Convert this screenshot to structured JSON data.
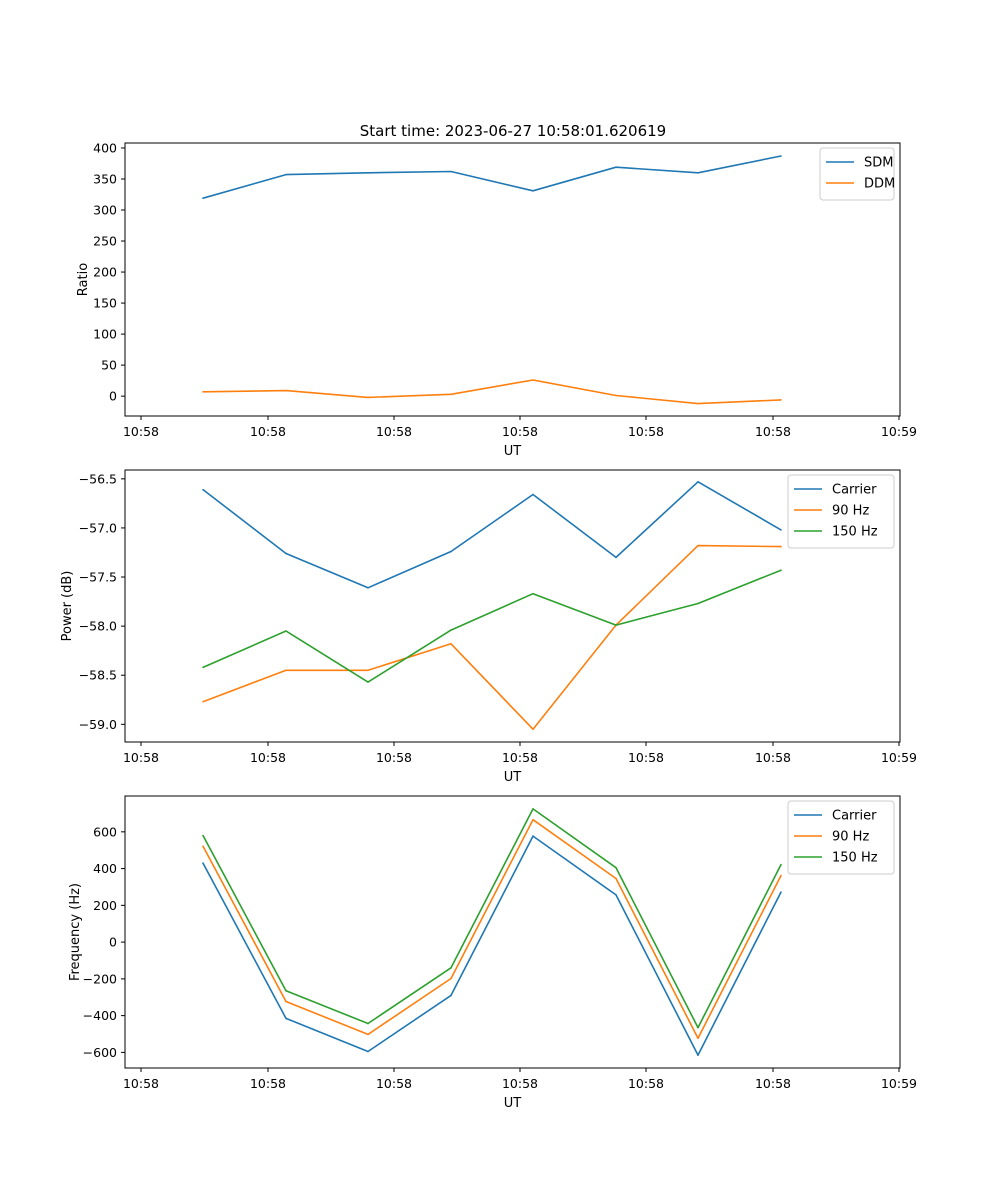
{
  "figure_title": "Start time: 2023-06-27 10:58:01.620619",
  "chart_data": [
    {
      "type": "line",
      "xlabel": "UT",
      "ylabel": "Ratio",
      "x_tick_labels": [
        "10:58",
        "10:58",
        "10:58",
        "10:58",
        "10:58",
        "10:58",
        "10:58"
      ],
      "x_tick_last": "10:59",
      "ylim": [
        -32,
        408
      ],
      "yticks": [
        0,
        50,
        100,
        150,
        200,
        250,
        300,
        350,
        400
      ],
      "ytick_labels": [
        "0",
        "50",
        "100",
        "150",
        "200",
        "250",
        "300",
        "350",
        "400"
      ],
      "legend_position": "top-right",
      "series": [
        {
          "name": "SDM",
          "color": "#1f77b4",
          "values": [
            319,
            357,
            360,
            362,
            331,
            369,
            360,
            387
          ]
        },
        {
          "name": "DDM",
          "color": "#ff7f0e",
          "values": [
            7,
            9,
            -2,
            3,
            26,
            1,
            -12,
            -6
          ]
        }
      ]
    },
    {
      "type": "line",
      "xlabel": "UT",
      "ylabel": "Power (dB)",
      "x_tick_labels": [
        "10:58",
        "10:58",
        "10:58",
        "10:58",
        "10:58",
        "10:58",
        "10:58"
      ],
      "x_tick_last": "10:59",
      "ylim": [
        -59.18,
        -56.41
      ],
      "yticks": [
        -59.0,
        -58.5,
        -58.0,
        -57.5,
        -57.0,
        -56.5
      ],
      "ytick_labels": [
        "−59.0",
        "−58.5",
        "−58.0",
        "−57.5",
        "−57.0",
        "−56.5"
      ],
      "legend_position": "top-right",
      "series": [
        {
          "name": "Carrier",
          "color": "#1f77b4",
          "values": [
            -56.61,
            -57.26,
            -57.61,
            -57.24,
            -56.66,
            -57.3,
            -56.53,
            -57.02
          ]
        },
        {
          "name": "90 Hz",
          "color": "#ff7f0e",
          "values": [
            -58.77,
            -58.45,
            -58.45,
            -58.18,
            -59.05,
            -57.99,
            -57.18,
            -57.19
          ]
        },
        {
          "name": "150 Hz",
          "color": "#2ca02c",
          "values": [
            -58.42,
            -58.05,
            -58.57,
            -58.04,
            -57.67,
            -57.99,
            -57.77,
            -57.43
          ]
        }
      ]
    },
    {
      "type": "line",
      "xlabel": "UT",
      "ylabel": "Frequency (Hz)",
      "x_tick_labels": [
        "10:58",
        "10:58",
        "10:58",
        "10:58",
        "10:58",
        "10:58",
        "10:58"
      ],
      "x_tick_last": "10:59",
      "ylim": [
        -685,
        795
      ],
      "yticks": [
        -600,
        -400,
        -200,
        0,
        200,
        400,
        600
      ],
      "ytick_labels": [
        "−600",
        "−400",
        "−200",
        "0",
        "200",
        "400",
        "600"
      ],
      "legend_position": "top-right",
      "series": [
        {
          "name": "Carrier",
          "color": "#1f77b4",
          "values": [
            430,
            -415,
            -595,
            -290,
            577,
            257,
            -615,
            272
          ]
        },
        {
          "name": "90 Hz",
          "color": "#ff7f0e",
          "values": [
            522,
            -323,
            -502,
            -198,
            666,
            346,
            -523,
            362
          ]
        },
        {
          "name": "150 Hz",
          "color": "#2ca02c",
          "values": [
            580,
            -265,
            -443,
            -140,
            725,
            405,
            -465,
            422
          ]
        }
      ]
    }
  ]
}
